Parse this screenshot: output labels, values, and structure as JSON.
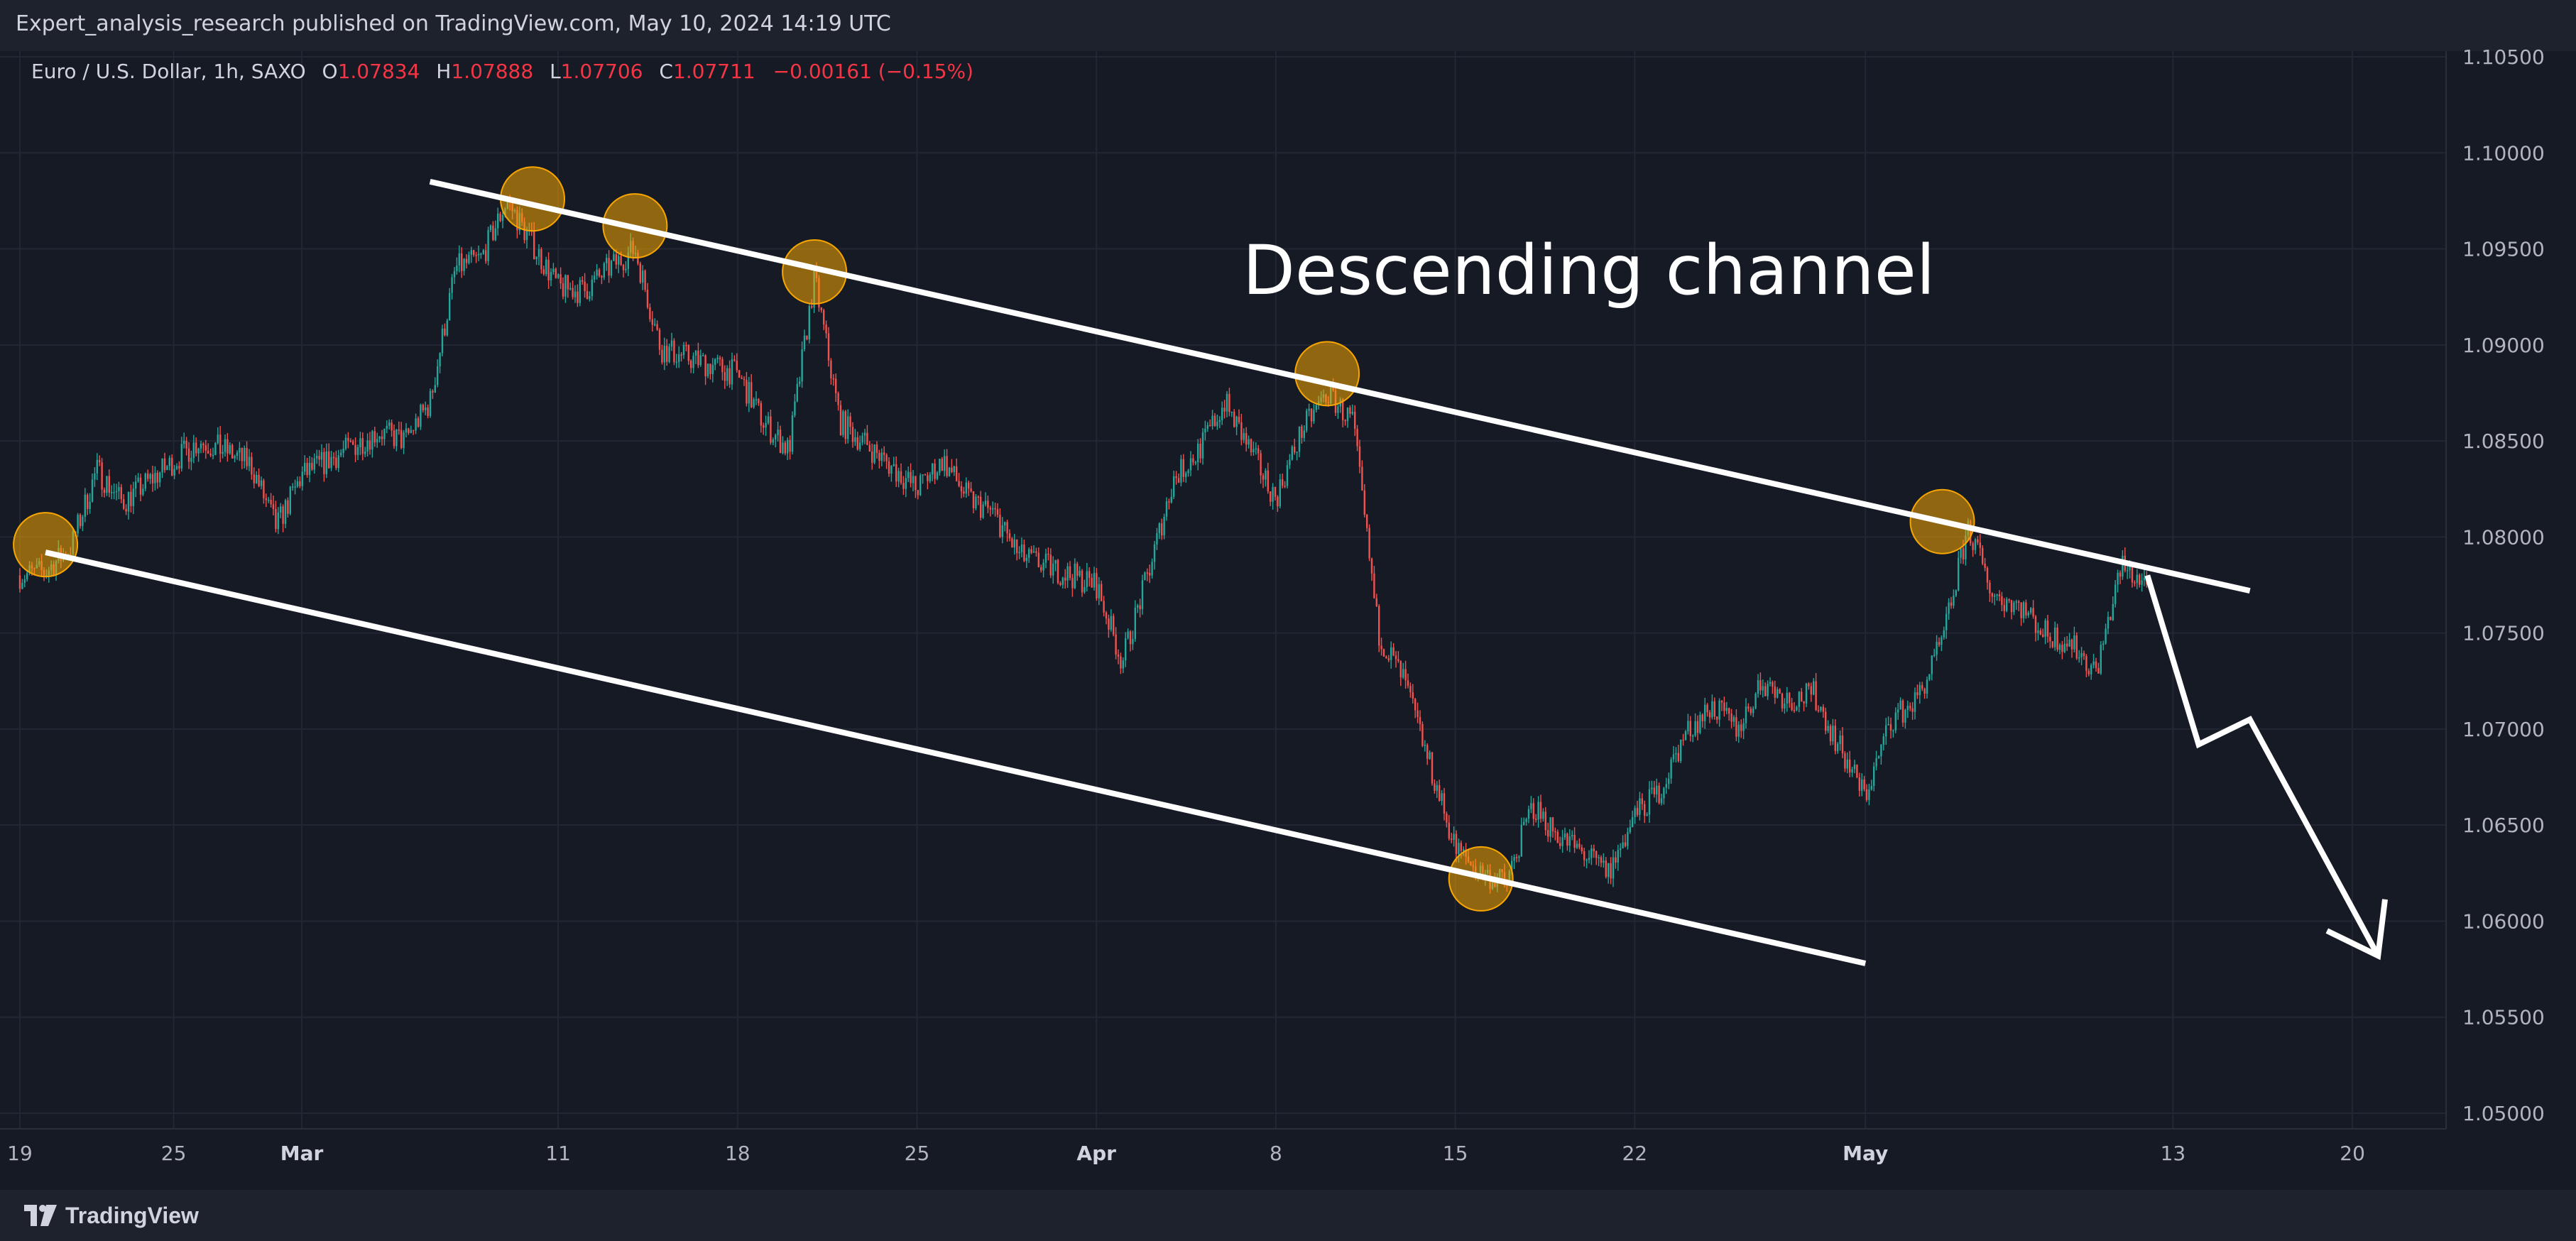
{
  "header": {
    "published_text": "Expert_analysis_research published on TradingView.com, May 10, 2024 14:19 UTC"
  },
  "legend": {
    "symbol": "Euro / U.S. Dollar, 1h, SAXO",
    "open_label": "O",
    "open": "1.07834",
    "high_label": "H",
    "high": "1.07888",
    "low_label": "L",
    "low": "1.07706",
    "close_label": "C",
    "close": "1.07711",
    "change": "−0.00161 (−0.15%)"
  },
  "footer": {
    "brand": "TradingView"
  },
  "colors": {
    "background": "#161a25",
    "up_candle": "#26a69a",
    "down_candle": "#ef5350",
    "annotation_line": "#ffffff",
    "circle_fill": "#f7a600",
    "grid": "#232733"
  },
  "chart_data": {
    "type": "candlestick",
    "instrument": "Euro / U.S. Dollar",
    "timeframe": "1h",
    "source": "SAXO",
    "ylim": [
      1.05,
      1.105
    ],
    "y_ticks": [
      "1.10500",
      "1.10000",
      "1.09500",
      "1.09000",
      "1.08500",
      "1.08000",
      "1.07500",
      "1.07000",
      "1.06500",
      "1.06000",
      "1.05500",
      "1.05000"
    ],
    "x_ticks": [
      {
        "label": "19",
        "bold": false,
        "date": "2024-02-19"
      },
      {
        "label": "25",
        "bold": false,
        "date": "2024-02-25"
      },
      {
        "label": "Mar",
        "bold": true,
        "date": "2024-03-01"
      },
      {
        "label": "11",
        "bold": false,
        "date": "2024-03-11"
      },
      {
        "label": "18",
        "bold": false,
        "date": "2024-03-18"
      },
      {
        "label": "25",
        "bold": false,
        "date": "2024-03-25"
      },
      {
        "label": "Apr",
        "bold": true,
        "date": "2024-04-01"
      },
      {
        "label": "8",
        "bold": false,
        "date": "2024-04-08"
      },
      {
        "label": "15",
        "bold": false,
        "date": "2024-04-15"
      },
      {
        "label": "22",
        "bold": false,
        "date": "2024-04-22"
      },
      {
        "label": "May",
        "bold": true,
        "date": "2024-05-01"
      },
      {
        "label": "13",
        "bold": false,
        "date": "2024-05-13"
      },
      {
        "label": "20",
        "bold": false,
        "date": "2024-05-20"
      }
    ],
    "x_domain": [
      "2024-02-19",
      "2024-05-25"
    ],
    "price_path": [
      [
        "2024-02-19",
        1.078
      ],
      [
        "2024-02-20",
        1.0782
      ],
      [
        "2024-02-21",
        1.0795
      ],
      [
        "2024-02-22",
        1.0835
      ],
      [
        "2024-02-23",
        1.0818
      ],
      [
        "2024-02-26",
        1.085
      ],
      [
        "2024-02-27",
        1.0845
      ],
      [
        "2024-02-28",
        1.0838
      ],
      [
        "2024-02-29",
        1.0805
      ],
      [
        "2024-03-01",
        1.0832
      ],
      [
        "2024-03-04",
        1.0855
      ],
      [
        "2024-03-05",
        1.085
      ],
      [
        "2024-03-06",
        1.087
      ],
      [
        "2024-03-07",
        1.094
      ],
      [
        "2024-03-08",
        1.0945
      ],
      [
        "2024-03-09",
        1.0975
      ],
      [
        "2024-03-11",
        1.093
      ],
      [
        "2024-03-12",
        1.0928
      ],
      [
        "2024-03-13",
        1.094
      ],
      [
        "2024-03-14",
        1.095
      ],
      [
        "2024-03-15",
        1.0898
      ],
      [
        "2024-03-18",
        1.0885
      ],
      [
        "2024-03-19",
        1.086
      ],
      [
        "2024-03-20",
        1.0845
      ],
      [
        "2024-03-21",
        1.0935
      ],
      [
        "2024-03-22",
        1.086
      ],
      [
        "2024-03-25",
        1.0825
      ],
      [
        "2024-03-26",
        1.084
      ],
      [
        "2024-03-27",
        1.082
      ],
      [
        "2024-03-28",
        1.0812
      ],
      [
        "2024-03-29",
        1.079
      ],
      [
        "2024-04-01",
        1.0775
      ],
      [
        "2024-04-02",
        1.0735
      ],
      [
        "2024-04-03",
        1.078
      ],
      [
        "2024-04-04",
        1.083
      ],
      [
        "2024-04-05",
        1.0845
      ],
      [
        "2024-04-06",
        1.087
      ],
      [
        "2024-04-08",
        1.082
      ],
      [
        "2024-04-09",
        1.0855
      ],
      [
        "2024-04-10",
        1.0875
      ],
      [
        "2024-04-11",
        1.086
      ],
      [
        "2024-04-12",
        1.075
      ],
      [
        "2024-04-13",
        1.0725
      ],
      [
        "2024-04-15",
        1.0638
      ],
      [
        "2024-04-16",
        1.0625
      ],
      [
        "2024-04-17",
        1.062
      ],
      [
        "2024-04-18",
        1.066
      ],
      [
        "2024-04-19",
        1.0645
      ],
      [
        "2024-04-21",
        1.0625
      ],
      [
        "2024-04-22",
        1.0655
      ],
      [
        "2024-04-23",
        1.0668
      ],
      [
        "2024-04-24",
        1.0698
      ],
      [
        "2024-04-25",
        1.0712
      ],
      [
        "2024-04-26",
        1.07
      ],
      [
        "2024-04-27",
        1.0725
      ],
      [
        "2024-04-28",
        1.0715
      ],
      [
        "2024-04-29",
        1.0718
      ],
      [
        "2024-04-30",
        1.069
      ],
      [
        "2024-05-01",
        1.0665
      ],
      [
        "2024-05-02",
        1.0705
      ],
      [
        "2024-05-03",
        1.0715
      ],
      [
        "2024-05-04",
        1.0745
      ],
      [
        "2024-05-05",
        1.0805
      ],
      [
        "2024-05-06",
        1.077
      ],
      [
        "2024-05-07",
        1.0765
      ],
      [
        "2024-05-08",
        1.075
      ],
      [
        "2024-05-09",
        1.0745
      ],
      [
        "2024-05-10",
        1.073
      ],
      [
        "2024-05-11",
        1.0785
      ],
      [
        "2024-05-12",
        1.0775
      ]
    ],
    "annotations": {
      "title_text": "Descending channel",
      "upper_channel_line": [
        [
          "2024-03-06",
          1.0985
        ],
        [
          "2024-05-16",
          1.0772
        ]
      ],
      "lower_channel_line": [
        [
          "2024-02-20",
          1.0792
        ],
        [
          "2024-05-01",
          1.0578
        ]
      ],
      "touch_points": [
        [
          "2024-02-20",
          1.0796
        ],
        [
          "2024-03-10",
          1.0976
        ],
        [
          "2024-03-14",
          1.0962
        ],
        [
          "2024-03-21",
          1.0938
        ],
        [
          "2024-04-10",
          1.0885
        ],
        [
          "2024-04-16",
          1.0622
        ],
        [
          "2024-05-04",
          1.0808
        ]
      ],
      "projection_arrow": [
        [
          "2024-05-12",
          1.078
        ],
        [
          "2024-05-14",
          1.0692
        ],
        [
          "2024-05-16",
          1.0705
        ],
        [
          "2024-05-21",
          1.0582
        ]
      ]
    }
  }
}
